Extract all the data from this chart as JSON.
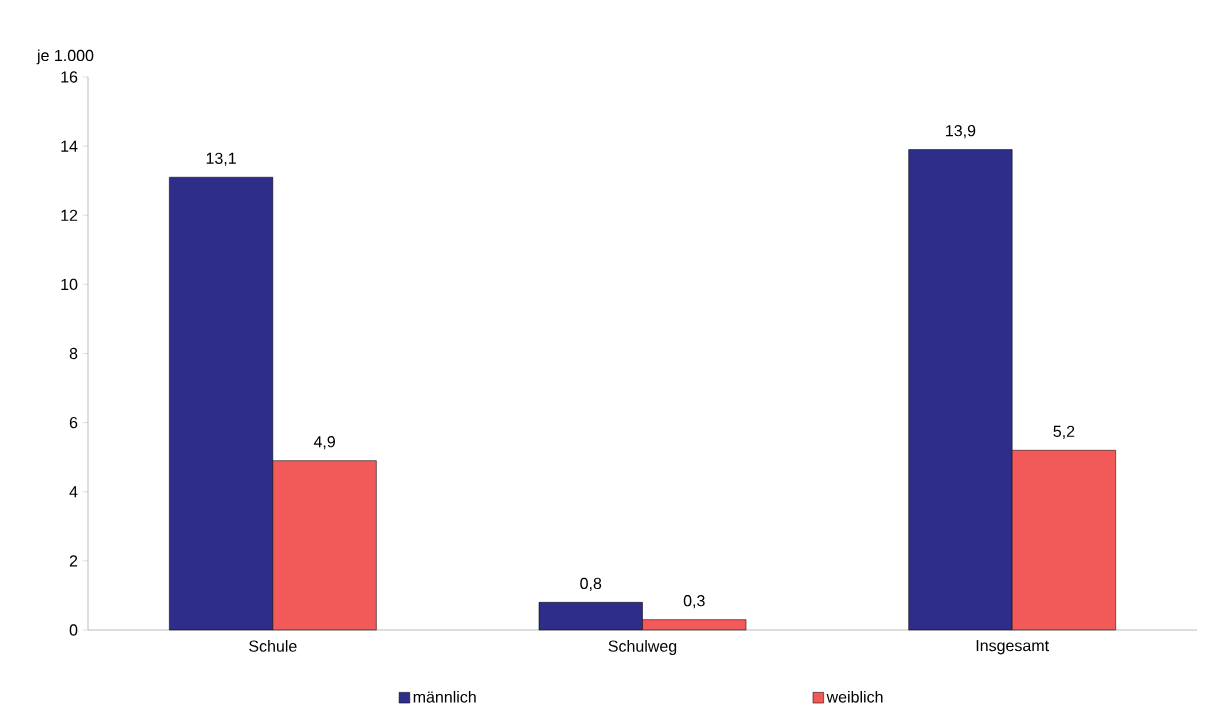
{
  "chart_data": {
    "type": "bar",
    "ylabel": "je 1.000",
    "categories": [
      "Schule",
      "Schulweg",
      "Insgesamt"
    ],
    "series": [
      {
        "name": "männlich",
        "color": "#2e2e8a",
        "values": [
          13.1,
          0.8,
          13.9
        ],
        "value_labels": [
          "13,1",
          "0,8",
          "13,9"
        ]
      },
      {
        "name": "weiblich",
        "color": "#f25a5a",
        "values": [
          4.9,
          0.3,
          5.2
        ],
        "value_labels": [
          "4,9",
          "0,3",
          "5,2"
        ]
      }
    ],
    "ylim": [
      0,
      16
    ],
    "yticks": [
      0,
      2,
      4,
      6,
      8,
      10,
      12,
      14,
      16
    ],
    "grid": false,
    "legend": "bottom"
  }
}
